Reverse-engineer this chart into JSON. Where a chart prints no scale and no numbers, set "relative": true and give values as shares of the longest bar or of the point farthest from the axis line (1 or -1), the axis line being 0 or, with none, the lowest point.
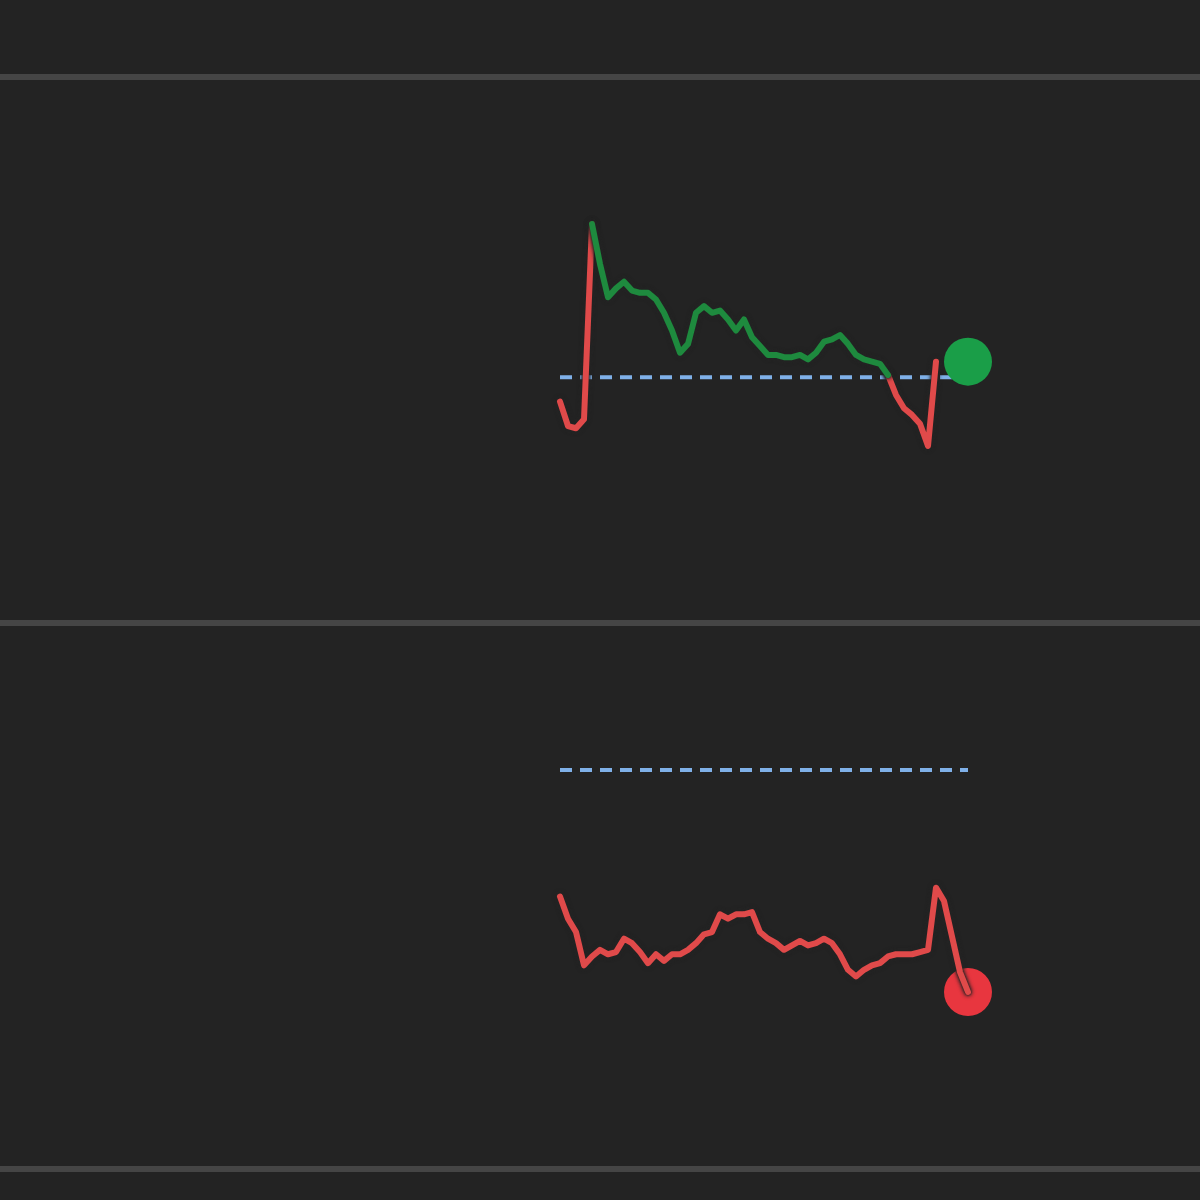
{
  "chart_data": [
    {
      "type": "line",
      "relative": true,
      "categories": [
        null,
        null,
        null,
        null,
        null,
        null,
        null,
        null,
        null,
        null,
        null,
        null,
        null,
        null,
        null,
        null,
        null,
        null,
        null,
        null,
        null,
        null,
        null,
        null,
        null,
        null,
        null,
        null,
        null,
        null,
        null,
        null,
        null,
        null,
        null,
        null,
        null,
        null,
        null,
        null,
        null,
        null,
        null,
        null,
        null,
        null,
        null,
        null,
        null,
        null,
        null,
        null
      ],
      "series": [
        {
          "color": "#e04a4a",
          "values": [
            0.2,
            0.09,
            0.08,
            0.12,
            1,
            null,
            null,
            null,
            null,
            null,
            null,
            null,
            null,
            null,
            null,
            null,
            null,
            null,
            null,
            null,
            null,
            null,
            null,
            null,
            null,
            null,
            null,
            null,
            null,
            null,
            null,
            null,
            null,
            null,
            null,
            null,
            null,
            null,
            null,
            null,
            null,
            0.32,
            0.23,
            0.17,
            0.14,
            0.1,
            0,
            0.38,
            null,
            null,
            null,
            null
          ]
        },
        {
          "color": "#1e8a3e",
          "values": [
            null,
            null,
            null,
            null,
            1,
            0.82,
            0.67,
            0.71,
            0.74,
            0.7,
            0.69,
            0.69,
            0.66,
            0.6,
            0.52,
            0.42,
            0.46,
            0.6,
            0.63,
            0.6,
            0.61,
            0.57,
            0.52,
            0.57,
            0.49,
            0.45,
            0.41,
            0.41,
            0.4,
            0.4,
            0.41,
            0.39,
            0.42,
            0.47,
            0.48,
            0.5,
            0.46,
            0.41,
            0.39,
            0.38,
            0.37,
            0.32,
            null,
            null,
            null,
            null,
            null,
            null,
            null,
            null,
            null,
            null
          ]
        }
      ],
      "ref_lines": [
        {
          "axis": "y",
          "value": 0.31,
          "color": "#7fb0e8",
          "line_style": "dashed"
        }
      ]
    },
    {
      "type": "line",
      "relative": true,
      "categories": [
        null,
        null,
        null,
        null,
        null,
        null,
        null,
        null,
        null,
        null,
        null,
        null,
        null,
        null,
        null,
        null,
        null,
        null,
        null,
        null,
        null,
        null,
        null,
        null,
        null,
        null,
        null,
        null,
        null,
        null,
        null,
        null,
        null,
        null,
        null,
        null,
        null,
        null,
        null,
        null,
        null,
        null,
        null,
        null,
        null,
        null,
        null,
        null,
        null,
        null,
        null,
        null
      ],
      "series": [
        {
          "color": "#e04a4a",
          "values": [
            -0.57,
            -0.67,
            -0.73,
            -0.88,
            -0.84,
            -0.81,
            -0.83,
            -0.82,
            -0.76,
            -0.78,
            -0.82,
            -0.87,
            -0.83,
            -0.86,
            -0.83,
            -0.83,
            -0.81,
            -0.78,
            -0.74,
            -0.73,
            -0.65,
            -0.67,
            -0.65,
            -0.65,
            -0.64,
            -0.73,
            -0.76,
            -0.78,
            -0.81,
            -0.79,
            -0.77,
            -0.79,
            -0.78,
            -0.76,
            -0.78,
            -0.83,
            -0.9,
            -0.93,
            -0.9,
            -0.88,
            -0.87,
            -0.84,
            -0.83,
            -0.83,
            -0.83,
            -0.82,
            -0.81,
            -0.53,
            -0.59,
            -0.75,
            -0.91,
            -1
          ]
        }
      ],
      "ref_lines": [
        {
          "axis": "y",
          "value": 0,
          "color": "#7fb0e8",
          "line_style": "dashed"
        }
      ]
    }
  ]
}
